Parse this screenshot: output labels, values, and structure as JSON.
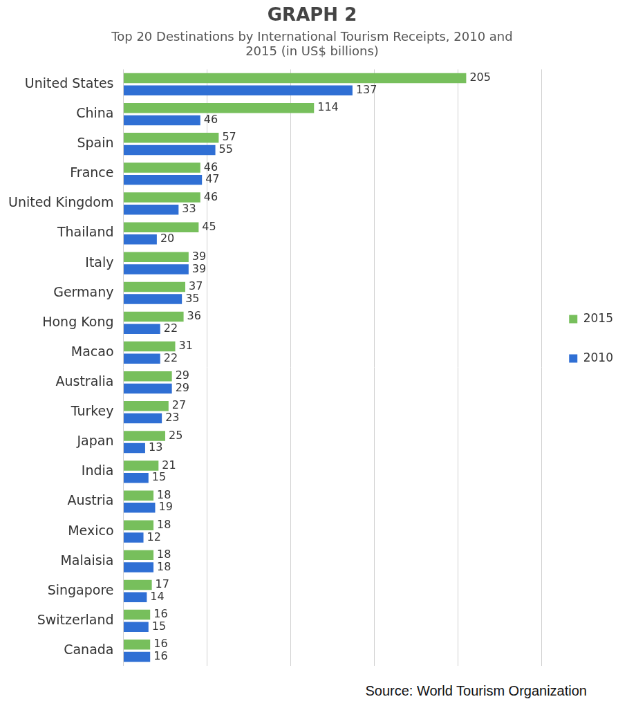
{
  "chart_data": {
    "type": "bar",
    "orientation": "horizontal",
    "title": "GRAPH 2",
    "subtitle": "Top 20 Destinations by International Tourism Receipts, 2010 and 2015 (in US$ billions)",
    "source": "Source: World Tourism Organization",
    "categories": [
      "United States",
      "China",
      "Spain",
      "France",
      "United Kingdom",
      "Thailand",
      "Italy",
      "Germany",
      "Hong Kong",
      "Macao",
      "Australia",
      "Turkey",
      "Japan",
      "India",
      "Austria",
      "Mexico",
      "Malaisia",
      "Singapore",
      "Switzerland",
      "Canada"
    ],
    "series": [
      {
        "name": "2015",
        "color": "#77bf5c",
        "values": [
          205,
          114,
          57,
          46,
          46,
          45,
          39,
          37,
          36,
          31,
          29,
          27,
          25,
          21,
          18,
          18,
          18,
          17,
          16,
          16
        ]
      },
      {
        "name": "2010",
        "color": "#2f6fd4",
        "values": [
          137,
          46,
          55,
          47,
          33,
          20,
          39,
          35,
          22,
          22,
          29,
          23,
          13,
          15,
          19,
          12,
          18,
          14,
          15,
          16
        ]
      }
    ],
    "xlim": [
      0,
      250
    ],
    "xticks": [
      0,
      50,
      100,
      150,
      200,
      250
    ],
    "grid": true,
    "legend": "right",
    "data_labels": true,
    "tick_labels": "y"
  }
}
